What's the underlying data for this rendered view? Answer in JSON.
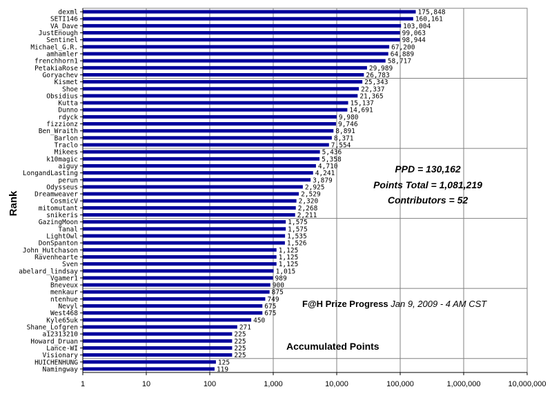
{
  "chart_data": {
    "type": "bar",
    "orientation": "horizontal",
    "x_scale": "log",
    "xlim": [
      1,
      10000000
    ],
    "x_ticks": [
      "1",
      "10",
      "100",
      "1,000",
      "10,000",
      "100,000",
      "1,000,000",
      "10,000,000"
    ],
    "ylabel": "Rank",
    "grid": true,
    "bar_color": "#00009c",
    "categories": [
      "dexml",
      "SETI146",
      "VA_Dave",
      "JustEnough",
      "Sentinel",
      "Michael_G.R.",
      "amhamler",
      "frenchhorn1",
      "PetakiaRose",
      "Goryachev",
      "Kismet",
      "Shoe",
      "Obsidius",
      "Kutta",
      "Dunno",
      "rdyck",
      "fizzionz",
      "Ben_Wraith",
      "Barlon",
      "Traclo",
      "Mikees",
      "k10magic",
      "aiguy",
      "LongandLasting",
      "perun",
      "Odysseus",
      "Dreamweaver",
      "CosmicV",
      "mitomutant",
      "snikeris",
      "GazingMoon",
      "Tanal",
      "LightOwl",
      "DonSpanton",
      "John_Hutchason",
      "Ravenhearte",
      "Sven",
      "abelard_lindsay",
      "Vgamer1",
      "Bneveux",
      "menkaur",
      "ntenhue",
      "Nevyl",
      "West468",
      "Kyle65uk",
      "Shane_Lofgren",
      "a12313210",
      "Howard_Druan",
      "Lance-WI",
      "Visionary",
      "HUICHENHUNG",
      "Namingway"
    ],
    "values": [
      175848,
      160161,
      103004,
      99063,
      98944,
      67200,
      64889,
      58717,
      29989,
      26783,
      25343,
      22337,
      21365,
      15137,
      14691,
      9980,
      9746,
      8891,
      8371,
      7554,
      5436,
      5358,
      4710,
      4241,
      3879,
      2925,
      2529,
      2320,
      2268,
      2211,
      1575,
      1575,
      1535,
      1526,
      1125,
      1125,
      1125,
      1015,
      989,
      900,
      875,
      749,
      675,
      675,
      450,
      271,
      225,
      225,
      225,
      225,
      125,
      119
    ],
    "value_labels": [
      "175,848",
      "160,161",
      "103,004",
      "99,063",
      "98,944",
      "67,200",
      "64,889",
      "58,717",
      "29,989",
      "26,783",
      "25,343",
      "22,337",
      "21,365",
      "15,137",
      "14,691",
      "9,980",
      "9,746",
      "8,891",
      "8,371",
      "7,554",
      "5,436",
      "5,358",
      "4,710",
      "4,241",
      "3,879",
      "2,925",
      "2,529",
      "2,320",
      "2,268",
      "2,211",
      "1,575",
      "1,575",
      "1,535",
      "1,526",
      "1,125",
      "1,125",
      "1,125",
      "1,015",
      "989",
      "900",
      "875",
      "749",
      "675",
      "675",
      "450",
      "271",
      "225",
      "225",
      "225",
      "225",
      "125",
      "119"
    ]
  },
  "annotations": {
    "ppd": "PPD = 130,162",
    "points_total": "Points Total = 1,081,219",
    "contributors": "Contributors = 52",
    "title_bold": "F@H Prize Progress",
    "title_date": " Jan 9, 2009 - 4 AM CST",
    "series_caption": "Accumulated Points"
  }
}
